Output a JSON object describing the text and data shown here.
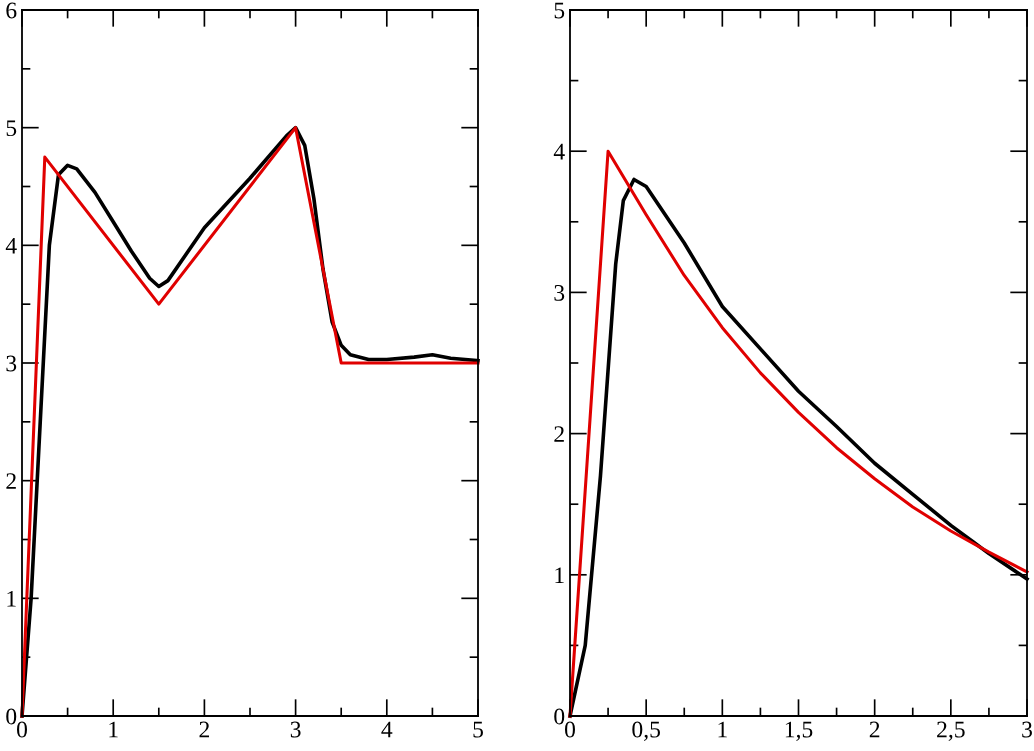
{
  "chart_data": [
    {
      "type": "line",
      "xlim": [
        0,
        5
      ],
      "ylim": [
        0,
        6
      ],
      "grid": false,
      "legend": false,
      "marker": "none",
      "line_style": "solid",
      "xticks": [
        0,
        {
          "value": 0.5,
          "label": null
        },
        1,
        {
          "value": 1.5,
          "label": null
        },
        2,
        {
          "value": 2.5,
          "label": null
        },
        3,
        {
          "value": 3.5,
          "label": null
        },
        4,
        {
          "value": 4.5,
          "label": null
        },
        5
      ],
      "yticks": [
        0,
        {
          "value": 0.5,
          "label": null
        },
        1,
        {
          "value": 1.5,
          "label": null
        },
        2,
        {
          "value": 2.5,
          "label": null
        },
        3,
        {
          "value": 3.5,
          "label": null
        },
        4,
        {
          "value": 4.5,
          "label": null
        },
        5,
        {
          "value": 5.5,
          "label": null
        },
        6
      ],
      "series": [
        {
          "color": "#000000",
          "x": [
            0,
            0.1,
            0.2,
            0.3,
            0.4,
            0.5,
            0.6,
            0.8,
            1.0,
            1.2,
            1.4,
            1.5,
            1.6,
            2.0,
            2.5,
            2.9,
            3.0,
            3.1,
            3.2,
            3.3,
            3.4,
            3.5,
            3.6,
            3.8,
            4.0,
            4.3,
            4.5,
            4.7,
            5.0
          ],
          "values": [
            0,
            1.0,
            2.5,
            4.0,
            4.6,
            4.68,
            4.65,
            4.45,
            4.2,
            3.95,
            3.72,
            3.65,
            3.7,
            4.15,
            4.57,
            4.93,
            5.0,
            4.85,
            4.4,
            3.8,
            3.35,
            3.15,
            3.07,
            3.03,
            3.03,
            3.05,
            3.07,
            3.04,
            3.02
          ]
        },
        {
          "color": "#e00000",
          "x": [
            0,
            0.25,
            1.5,
            3,
            3.5,
            5
          ],
          "values": [
            0,
            4.75,
            3.5,
            5,
            3,
            3
          ]
        }
      ]
    },
    {
      "type": "line",
      "xlim": [
        0,
        3
      ],
      "ylim": [
        0,
        5
      ],
      "grid": false,
      "legend": false,
      "marker": "none",
      "line_style": "solid",
      "xticks": [
        0,
        {
          "value": 0.25,
          "label": null
        },
        {
          "value": 0.5,
          "label": "0,5"
        },
        {
          "value": 0.75,
          "label": null
        },
        1,
        {
          "value": 1.25,
          "label": null
        },
        {
          "value": 1.5,
          "label": "1,5"
        },
        {
          "value": 1.75,
          "label": null
        },
        2,
        {
          "value": 2.25,
          "label": null
        },
        {
          "value": 2.5,
          "label": "2,5"
        },
        {
          "value": 2.75,
          "label": null
        },
        3
      ],
      "yticks": [
        0,
        {
          "value": 0.5,
          "label": null
        },
        1,
        {
          "value": 1.5,
          "label": null
        },
        2,
        {
          "value": 2.5,
          "label": null
        },
        3,
        {
          "value": 3.5,
          "label": null
        },
        4,
        {
          "value": 4.5,
          "label": null
        },
        5
      ],
      "series": [
        {
          "color": "#000000",
          "x": [
            0,
            0.1,
            0.2,
            0.3,
            0.35,
            0.42,
            0.5,
            0.75,
            1.0,
            1.25,
            1.5,
            1.75,
            2.0,
            2.25,
            2.5,
            2.65,
            2.75,
            3.0
          ],
          "values": [
            0,
            0.5,
            1.7,
            3.2,
            3.65,
            3.8,
            3.75,
            3.35,
            2.9,
            2.6,
            2.3,
            2.05,
            1.79,
            1.57,
            1.35,
            1.23,
            1.15,
            0.97
          ]
        },
        {
          "color": "#e00000",
          "x": [
            0,
            0.25,
            0.5,
            0.75,
            1.0,
            1.25,
            1.5,
            1.75,
            2.0,
            2.25,
            2.5,
            2.75,
            3.0
          ],
          "values": [
            0,
            4.0,
            3.55,
            3.12,
            2.75,
            2.43,
            2.15,
            1.9,
            1.68,
            1.48,
            1.31,
            1.16,
            1.02
          ]
        }
      ]
    }
  ]
}
